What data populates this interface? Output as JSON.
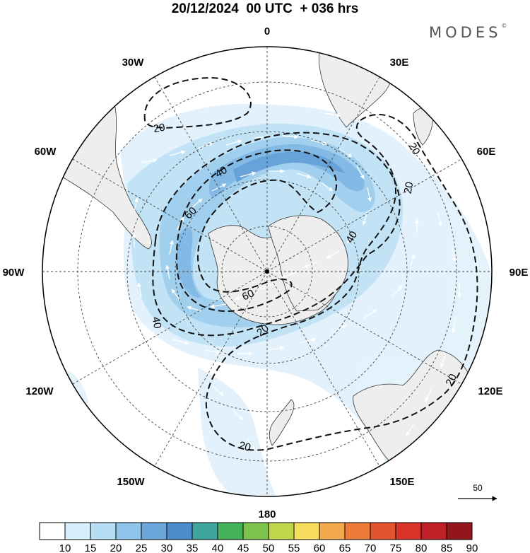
{
  "title": "20/12/2024  00 UTC  + 036 hrs",
  "brand": {
    "name": "MODES",
    "mark": "©"
  },
  "map": {
    "projection": "south polar stereographic",
    "longitude_labels": [
      {
        "text": "0",
        "lon": 0
      },
      {
        "text": "30E",
        "lon": 30
      },
      {
        "text": "60E",
        "lon": 60
      },
      {
        "text": "90E",
        "lon": 90
      },
      {
        "text": "120E",
        "lon": 120
      },
      {
        "text": "150E",
        "lon": 150
      },
      {
        "text": "180",
        "lon": 180
      },
      {
        "text": "150W",
        "lon": -150
      },
      {
        "text": "120W",
        "lon": -120
      },
      {
        "text": "90W",
        "lon": -90
      },
      {
        "text": "60W",
        "lon": -60
      },
      {
        "text": "30W",
        "lon": -30
      }
    ],
    "contour_labels": [
      "20",
      "20",
      "20",
      "20",
      "20",
      "20",
      "40",
      "40",
      "40",
      "60",
      "60"
    ],
    "vector_reference": "50",
    "colors": {
      "land": "#eeeeee",
      "grid": "#444444",
      "contour": "#111111",
      "shade_10": "#e1f1fb",
      "shade_15": "#bfe2f6",
      "shade_20": "#9dcdee",
      "shade_25": "#7db7e4",
      "shade_30": "#5f9fd8"
    }
  },
  "colorbar": {
    "ticks": [
      "10",
      "15",
      "20",
      "25",
      "30",
      "35",
      "40",
      "45",
      "50",
      "55",
      "60",
      "65",
      "70",
      "75",
      "80",
      "85",
      "90"
    ],
    "colors": [
      "#ffffff",
      "#d7eefb",
      "#b5ddf4",
      "#8fc4ea",
      "#6ca7dc",
      "#4b8cca",
      "#3fa59c",
      "#44b25a",
      "#7cc24d",
      "#bed64b",
      "#f6dd5e",
      "#f2a94b",
      "#ec7b38",
      "#e2532f",
      "#d83229",
      "#bf2025",
      "#93161d"
    ]
  }
}
